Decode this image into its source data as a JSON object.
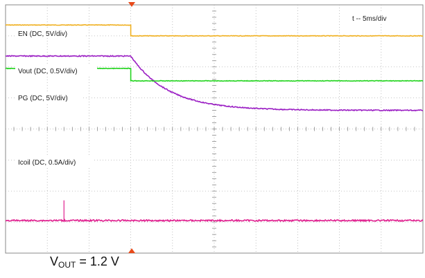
{
  "chart_data": {
    "type": "line",
    "timebase_label": "t -- 5ms/div",
    "grid": true,
    "divisions": {
      "x": 10,
      "y": 8
    },
    "trigger_time_div": 3,
    "series": [
      {
        "name": "EN (DC, 5V/div)",
        "color": "#f0b020",
        "kind": "step",
        "high_div": 7.35,
        "low_div": 7.0,
        "step_at_div": 3
      },
      {
        "name": "Vout (DC, 0.5V/div)",
        "color": "#9b1fc4",
        "kind": "decay",
        "high_div": 6.35,
        "low_div": 4.6,
        "start_at_div": 3,
        "tau_div": 0.9
      },
      {
        "name": "PG (DC, 5V/div)",
        "color": "#22d41e",
        "kind": "step",
        "high_div": 5.95,
        "low_div": 5.55,
        "step_at_div": 3
      },
      {
        "name": "Icoil (DC, 0.5A/div)",
        "color": "#e0208f",
        "kind": "flat",
        "level_div": 1.05,
        "spike_at_div": 1.4,
        "spike_div": 0.65
      }
    ]
  },
  "caption": {
    "prefix": "V",
    "subscript": "OUT",
    "value": " = 1.2 V"
  }
}
